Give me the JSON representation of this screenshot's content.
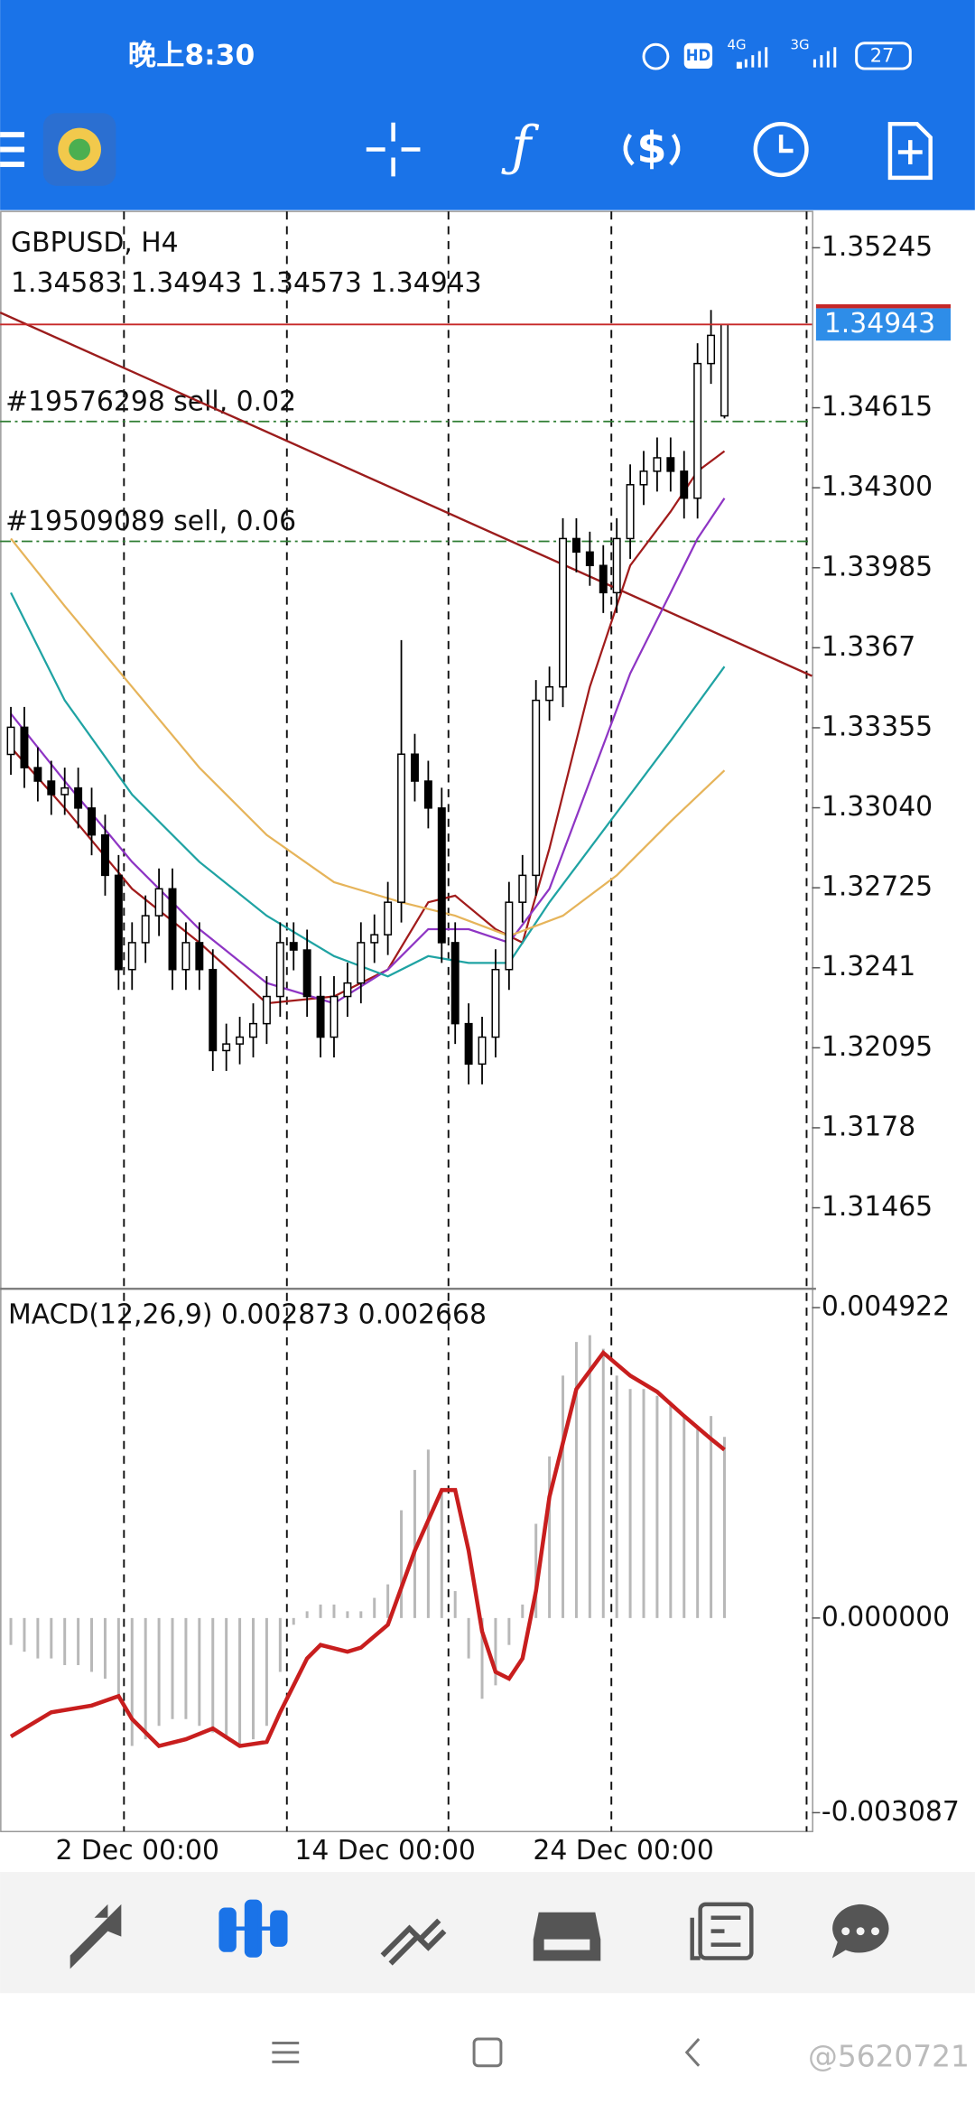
{
  "status_bar": {
    "time": "晚上8:30",
    "hd": "HD",
    "network_1": "4G",
    "network_2": "3G",
    "battery": "27"
  },
  "watermark": "@5620721",
  "chart_data": {
    "type": "candlestick",
    "symbol": "GBPUSD, H4",
    "ohlc_text": "1.34583 1.34943 1.34573 1.34943",
    "open": [
      1.3325,
      1.33357,
      1.33198,
      1.33145,
      1.33092,
      1.33118,
      1.33039,
      1.32933,
      1.32774,
      1.32403,
      1.32509,
      1.32615,
      1.32721,
      1.32403,
      1.32509,
      1.32403,
      1.32084,
      1.3211,
      1.32137,
      1.3219,
      1.32297,
      1.32509,
      1.3248,
      1.32297,
      1.32137,
      1.32297,
      1.3235,
      1.32509,
      1.3254,
      1.32668,
      1.33251,
      1.33145,
      1.33039,
      1.32509,
      1.3219,
      1.32031,
      1.32137,
      1.32403,
      1.32668,
      1.32774,
      1.33463,
      1.33516,
      1.341,
      1.34047,
      1.33994,
      1.33887,
      1.341,
      1.34312,
      1.34365,
      1.34418,
      1.34365,
      1.34259,
      1.34789,
      1.34583
    ],
    "high": [
      1.33437,
      1.33437,
      1.33278,
      1.33225,
      1.33198,
      1.33198,
      1.33119,
      1.33013,
      1.32854,
      1.32589,
      1.32695,
      1.32801,
      1.32801,
      1.32589,
      1.32589,
      1.32483,
      1.3219,
      1.32217,
      1.3227,
      1.32377,
      1.32589,
      1.32589,
      1.3256,
      1.32377,
      1.32377,
      1.3243,
      1.32589,
      1.3262,
      1.32748,
      1.337,
      1.33331,
      1.33225,
      1.33119,
      1.32589,
      1.3227,
      1.32217,
      1.32483,
      1.32748,
      1.32854,
      1.33543,
      1.33596,
      1.3418,
      1.3418,
      1.34127,
      1.34074,
      1.3418,
      1.34392,
      1.34445,
      1.34498,
      1.34498,
      1.34445,
      1.34869,
      1.35,
      1.34943
    ],
    "low": [
      1.3317,
      1.33118,
      1.33065,
      1.33012,
      1.33012,
      1.32959,
      1.32853,
      1.32694,
      1.32323,
      1.32323,
      1.32429,
      1.32535,
      1.32323,
      1.32323,
      1.32323,
      1.32004,
      1.32004,
      1.3203,
      1.32057,
      1.3211,
      1.32217,
      1.324,
      1.32217,
      1.32057,
      1.32057,
      1.32217,
      1.3227,
      1.32429,
      1.3246,
      1.32588,
      1.33065,
      1.32959,
      1.32429,
      1.3211,
      1.31951,
      1.31951,
      1.32057,
      1.32323,
      1.32588,
      1.32694,
      1.33383,
      1.33436,
      1.33967,
      1.33914,
      1.33807,
      1.33807,
      1.3402,
      1.34232,
      1.34285,
      1.34285,
      1.34179,
      1.34179,
      1.34709,
      1.34573
    ],
    "close": [
      1.33357,
      1.33198,
      1.33145,
      1.33092,
      1.33118,
      1.33039,
      1.32933,
      1.32774,
      1.32403,
      1.32509,
      1.32615,
      1.32721,
      1.32403,
      1.32509,
      1.32403,
      1.32084,
      1.3211,
      1.32137,
      1.3219,
      1.32297,
      1.32509,
      1.3248,
      1.32297,
      1.32137,
      1.32297,
      1.3235,
      1.32509,
      1.3254,
      1.32668,
      1.33251,
      1.33145,
      1.33039,
      1.32509,
      1.3219,
      1.32031,
      1.32137,
      1.32403,
      1.32668,
      1.32774,
      1.33463,
      1.33516,
      1.341,
      1.34047,
      1.33994,
      1.33887,
      1.341,
      1.34312,
      1.34365,
      1.34418,
      1.34365,
      1.34259,
      1.34789,
      1.349,
      1.34943
    ],
    "xlim": [
      -0.8,
      59.5
    ],
    "ylim": [
      1.31146,
      1.35388
    ],
    "yticks": [
      1.35245,
      1.34615,
      {
        "value": 1.343,
        "label": "1.34300"
      },
      1.33985,
      1.3367,
      1.33355,
      {
        "value": 1.3304,
        "label": "1.33040"
      },
      1.32725,
      1.3241,
      1.32095,
      1.3178,
      1.31465
    ],
    "xticks": [
      {
        "value": 9.4,
        "label": "2 Dec 00:00"
      },
      {
        "value": 27.8,
        "label": "14 Dec 00:00"
      },
      {
        "value": 45.5,
        "label": "24 Dec 00:00"
      }
    ],
    "period_separators": [
      8.4,
      20.5,
      32.5,
      44.6,
      59.1
    ],
    "candle_color": "#000000",
    "moving_averages": [
      {
        "color": "#a11b1b",
        "x": [
          0,
          4,
          9,
          14,
          19,
          24,
          28,
          31,
          33,
          36,
          38,
          40,
          43,
          46,
          49,
          51,
          53
        ],
        "values": [
          1.33278,
          1.33039,
          1.32721,
          1.32509,
          1.3227,
          1.32297,
          1.32403,
          1.32668,
          1.32694,
          1.32562,
          1.32509,
          1.3288,
          1.33516,
          1.33994,
          1.34206,
          1.34365,
          1.34444
        ]
      },
      {
        "color": "#8e35c4",
        "x": [
          0,
          4,
          9,
          14,
          19,
          24,
          28,
          31,
          34,
          37,
          40,
          43,
          46,
          49,
          51,
          53
        ],
        "values": [
          1.3341,
          1.33145,
          1.32827,
          1.32562,
          1.3235,
          1.3227,
          1.32403,
          1.32562,
          1.32562,
          1.32509,
          1.32721,
          1.33145,
          1.33569,
          1.33887,
          1.341,
          1.34259
        ]
      },
      {
        "color": "#1fa3a3",
        "x": [
          0,
          4,
          9,
          14,
          19,
          24,
          28,
          31,
          34,
          37,
          40,
          43,
          46,
          49,
          53
        ],
        "values": [
          1.33887,
          1.33463,
          1.33092,
          1.32827,
          1.32615,
          1.32456,
          1.32376,
          1.32456,
          1.32429,
          1.32429,
          1.32668,
          1.3288,
          1.33092,
          1.33304,
          1.33596
        ]
      },
      {
        "color": "#e6b45a",
        "x": [
          0,
          4,
          9,
          14,
          19,
          24,
          29,
          33,
          37,
          41,
          45,
          49,
          53
        ],
        "values": [
          1.341,
          1.33834,
          1.33516,
          1.33198,
          1.32933,
          1.32747,
          1.32668,
          1.32615,
          1.32535,
          1.32615,
          1.32774,
          1.32986,
          1.33187
        ]
      }
    ],
    "trendline": {
      "color": "#9b1c1c",
      "x": [
        -0.8,
        59.5
      ],
      "values": [
        1.3499,
        1.33559
      ]
    },
    "price_line": {
      "value": 1.34943,
      "color": "#c62828",
      "label_color": "#2e8de8"
    },
    "orders": [
      {
        "label": "#19576298 sell, 0.02",
        "value": 1.34561
      },
      {
        "label": "#19509089 sell, 0.06",
        "value": 1.34089
      }
    ],
    "order_color": "#2e7d32",
    "macd": {
      "title": "MACD(12,26,9) 0.002873 0.002668",
      "histogram": [
        -0.000427,
        -0.000534,
        -0.000641,
        -0.000641,
        -0.000747,
        -0.000747,
        -0.000854,
        -0.000961,
        -0.001281,
        -0.002029,
        -0.001922,
        -0.001709,
        -0.001602,
        -0.001602,
        -0.001709,
        -0.001815,
        -0.001922,
        -0.002029,
        -0.001922,
        -0.001709,
        -0.000854,
        -0.000107,
        0.000107,
        0.000214,
        0.000214,
        0.000107,
        0.000107,
        0.00032,
        0.000534,
        0.001709,
        0.002349,
        0.00267,
        0.002029,
        0.000427,
        -0.000641,
        -0.001281,
        -0.001068,
        -0.000427,
        0.000214,
        0.001495,
        0.002563,
        0.003844,
        0.004378,
        0.004485,
        0.004271,
        0.003844,
        0.003631,
        0.003631,
        0.003524,
        0.003417,
        0.003204,
        0.00299,
        0.003204,
        0.002873
      ],
      "histogram_color": "#b8b8b8",
      "signal": {
        "color": "#c81e1e",
        "x": [
          0,
          3,
          6,
          8,
          9,
          11,
          13,
          15,
          17,
          19,
          20,
          22,
          23,
          25,
          26,
          28,
          30,
          32,
          33,
          34,
          35,
          36,
          37,
          38,
          39,
          40,
          42,
          44,
          46,
          48,
          50,
          52,
          53
        ],
        "values": [
          -0.001879,
          -0.001495,
          -0.001388,
          -0.001239,
          -0.001602,
          -0.002029,
          -0.001922,
          -0.001751,
          -0.002029,
          -0.001965,
          -0.001495,
          -0.000641,
          -0.000427,
          -0.000534,
          -0.00047,
          -0.000107,
          0.001068,
          0.002029,
          0.002029,
          0.001068,
          -0.000214,
          -0.000854,
          -0.000961,
          -0.000641,
          0.000427,
          0.001922,
          0.003631,
          0.004207,
          0.003844,
          0.003588,
          0.003204,
          0.00284,
          0.002668
        ]
      },
      "ylim": [
        -0.003386,
        0.005221
      ],
      "yticks": [
        0.004922,
        {
          "value": 0,
          "label": "0.000000"
        },
        -0.003087
      ]
    }
  }
}
